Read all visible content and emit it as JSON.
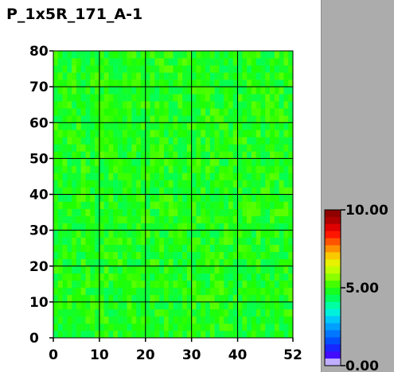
{
  "title": "P_1x5R_171_A-1",
  "colors": {
    "right_panel": "#acacac",
    "background": "#ffffff",
    "grid": "#000000"
  },
  "chart_data": {
    "type": "heatmap",
    "title": "P_1x5R_171_A-1",
    "xlim": [
      0,
      52
    ],
    "ylim": [
      0,
      80
    ],
    "x_ticks": [
      0,
      10,
      20,
      30,
      40,
      52
    ],
    "x_tick_labels": [
      "0",
      "10",
      "20",
      "30",
      "40",
      "52"
    ],
    "y_ticks": [
      0,
      10,
      20,
      30,
      40,
      50,
      60,
      70,
      80
    ],
    "y_tick_labels": [
      "0",
      "10",
      "20",
      "30",
      "40",
      "50",
      "60",
      "70",
      "80"
    ],
    "grid": true,
    "cell_value_range": [
      4.3,
      5.4
    ],
    "cell_value_typical": 5.0,
    "colorbar": {
      "min": 0.0,
      "max": 10.0,
      "tick_labels": [
        "10.00",
        "5.00",
        "0.00"
      ],
      "tick_values": [
        10,
        5,
        0
      ],
      "colors": [
        "#ffffff",
        "#3a00ff",
        "#0040ff",
        "#0080ff",
        "#00c0ff",
        "#00ffd0",
        "#00ff60",
        "#20ff00",
        "#90ff00",
        "#e0ff00",
        "#ffc000",
        "#ff6000",
        "#ff0000",
        "#b00000",
        "#800000"
      ]
    }
  }
}
